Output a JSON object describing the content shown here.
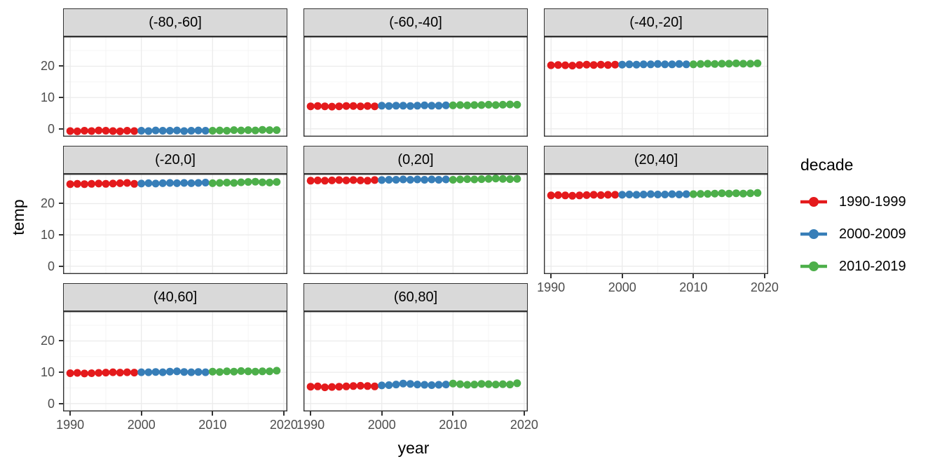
{
  "chart_data": {
    "type": "scatter",
    "title": "",
    "xlabel": "year",
    "ylabel": "temp",
    "facet_labels": [
      "(-80,-60]",
      "(-60,-40]",
      "(-40,-20]",
      "(-20,0]",
      "(0,20]",
      "(20,40]",
      "(40,60]",
      "(60,80]"
    ],
    "years": [
      1990,
      1991,
      1992,
      1993,
      1994,
      1995,
      1996,
      1997,
      1998,
      1999,
      2000,
      2001,
      2002,
      2003,
      2004,
      2005,
      2006,
      2007,
      2008,
      2009,
      2010,
      2011,
      2012,
      2013,
      2014,
      2015,
      2016,
      2017,
      2018,
      2019
    ],
    "facets": [
      {
        "label": "(-80,-60]",
        "temps": [
          -0.7,
          -0.8,
          -0.6,
          -0.7,
          -0.5,
          -0.6,
          -0.7,
          -0.8,
          -0.6,
          -0.7,
          -0.6,
          -0.7,
          -0.5,
          -0.6,
          -0.6,
          -0.5,
          -0.7,
          -0.6,
          -0.5,
          -0.6,
          -0.6,
          -0.5,
          -0.6,
          -0.4,
          -0.5,
          -0.4,
          -0.5,
          -0.3,
          -0.4,
          -0.4
        ]
      },
      {
        "label": "(-60,-40]",
        "temps": [
          7.2,
          7.3,
          7.2,
          7.1,
          7.2,
          7.3,
          7.3,
          7.2,
          7.3,
          7.2,
          7.4,
          7.3,
          7.4,
          7.4,
          7.3,
          7.4,
          7.5,
          7.4,
          7.4,
          7.5,
          7.5,
          7.6,
          7.5,
          7.6,
          7.6,
          7.7,
          7.6,
          7.7,
          7.8,
          7.7
        ]
      },
      {
        "label": "(-40,-20]",
        "temps": [
          20.3,
          20.4,
          20.3,
          20.2,
          20.4,
          20.5,
          20.4,
          20.5,
          20.4,
          20.5,
          20.5,
          20.6,
          20.5,
          20.6,
          20.6,
          20.7,
          20.6,
          20.6,
          20.7,
          20.6,
          20.6,
          20.7,
          20.8,
          20.7,
          20.8,
          20.8,
          20.9,
          20.8,
          20.8,
          20.9
        ]
      },
      {
        "label": "(-20,0]",
        "temps": [
          26.2,
          26.3,
          26.2,
          26.3,
          26.4,
          26.3,
          26.4,
          26.5,
          26.6,
          26.3,
          26.4,
          26.5,
          26.4,
          26.5,
          26.6,
          26.5,
          26.6,
          26.5,
          26.6,
          26.7,
          26.5,
          26.6,
          26.7,
          26.6,
          26.8,
          26.9,
          27.0,
          26.8,
          26.7,
          26.9
        ]
      },
      {
        "label": "(0,20]",
        "temps": [
          27.3,
          27.4,
          27.3,
          27.4,
          27.5,
          27.4,
          27.5,
          27.4,
          27.3,
          27.5,
          27.5,
          27.6,
          27.6,
          27.7,
          27.6,
          27.7,
          27.6,
          27.7,
          27.6,
          27.7,
          27.6,
          27.7,
          27.8,
          27.7,
          27.8,
          27.9,
          28.0,
          27.9,
          27.8,
          27.9
        ]
      },
      {
        "label": "(20,40]",
        "temps": [
          22.6,
          22.7,
          22.6,
          22.5,
          22.6,
          22.7,
          22.8,
          22.7,
          22.8,
          22.8,
          22.8,
          22.9,
          22.8,
          22.9,
          23.0,
          22.9,
          22.9,
          23.0,
          22.9,
          23.0,
          23.0,
          23.1,
          23.1,
          23.2,
          23.3,
          23.2,
          23.3,
          23.2,
          23.3,
          23.4
        ]
      },
      {
        "label": "(40,60]",
        "temps": [
          9.7,
          9.8,
          9.6,
          9.7,
          9.8,
          9.9,
          10.0,
          9.9,
          10.0,
          9.9,
          10.0,
          10.0,
          10.1,
          10.0,
          10.2,
          10.3,
          10.1,
          10.0,
          10.1,
          10.0,
          10.2,
          10.1,
          10.3,
          10.2,
          10.4,
          10.3,
          10.2,
          10.3,
          10.3,
          10.5
        ]
      },
      {
        "label": "(60,80]",
        "temps": [
          5.4,
          5.5,
          5.2,
          5.3,
          5.4,
          5.5,
          5.6,
          5.7,
          5.6,
          5.5,
          5.8,
          5.9,
          6.1,
          6.4,
          6.3,
          6.1,
          6.0,
          5.9,
          6.0,
          6.1,
          6.4,
          6.2,
          6.0,
          6.1,
          6.3,
          6.2,
          6.1,
          6.2,
          6.1,
          6.5
        ]
      }
    ],
    "legend": {
      "title": "decade",
      "position": "right",
      "entries": [
        {
          "label": "1990-1999",
          "color": "#E41A1C"
        },
        {
          "label": "2000-2009",
          "color": "#377EB8"
        },
        {
          "label": "2010-2019",
          "color": "#4DAF4A"
        }
      ]
    },
    "decade_breaks": [
      2000,
      2010
    ],
    "xticks": [
      1990,
      2000,
      2010,
      2020
    ],
    "yticks": [
      0,
      10,
      20
    ],
    "minor_xticks": [
      1995,
      2005,
      2015
    ],
    "minor_yticks": [
      5,
      15,
      25
    ],
    "xlim": [
      1989,
      2020.5
    ],
    "ylim": [
      -2.5,
      29.5
    ],
    "grid": "major+minor",
    "theme": {
      "strip_bg": "#D9D9D9",
      "strip_text": "#000000",
      "panel_bg": "#FFFFFF",
      "panel_border": "#333333",
      "grid_major": "#EBEBEB",
      "grid_minor": "#F5F5F5",
      "tick_color": "#333333",
      "tick_label_color": "#4D4D4D",
      "axis_title_color": "#000000"
    }
  }
}
